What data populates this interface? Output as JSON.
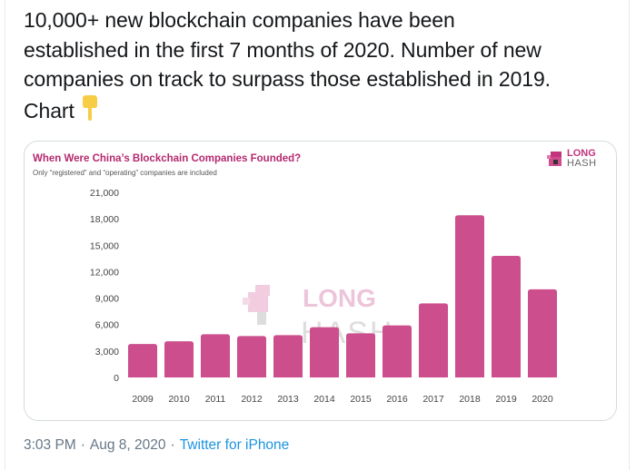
{
  "tweet": {
    "lines": [
      "10,000+ new blockchain companies have been",
      "established in the first 7 months of 2020. Number of new",
      "companies on track to surpass those established in 2019.",
      "Chart"
    ],
    "emoji": "pointing-down-hand",
    "time": "3:03 PM",
    "date": "Aug 8, 2020",
    "separator": "·",
    "source": "Twitter for iPhone"
  },
  "logo": {
    "line1": "LONG",
    "line2": "HASH"
  },
  "watermark": {
    "line1": "LONG",
    "line2": "HASH"
  },
  "colors": {
    "bar": "#CC4E8C",
    "title": "#B5286E",
    "link": "#1B95E0"
  },
  "chart_data": {
    "type": "bar",
    "title": "When Were China’s Blockchain Companies Founded?",
    "subtitle": "Only “registered” and “operating” companies are included",
    "xlabel": "",
    "ylabel": "",
    "categories": [
      "2009",
      "2010",
      "2011",
      "2012",
      "2013",
      "2014",
      "2015",
      "2016",
      "2017",
      "2018",
      "2019",
      "2020"
    ],
    "values": [
      3800,
      4100,
      4900,
      4700,
      4800,
      5700,
      5000,
      5900,
      8400,
      18400,
      13800,
      10000
    ],
    "ylim": [
      0,
      21000
    ],
    "yticks": [
      0,
      3000,
      6000,
      9000,
      12000,
      15000,
      18000,
      21000
    ],
    "ytick_labels": [
      "0",
      "3,000",
      "6,000",
      "9,000",
      "12,000",
      "15,000",
      "18,000",
      "21,000"
    ],
    "grid": false,
    "legend": "none"
  }
}
